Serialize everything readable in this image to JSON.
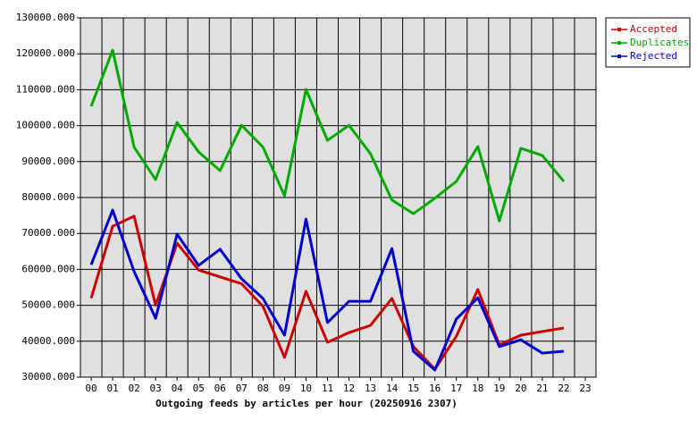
{
  "chart_data": {
    "type": "line",
    "xlabel": "Outgoing feeds by articles per hour (20250916 2307)",
    "categories": [
      "00",
      "01",
      "02",
      "03",
      "04",
      "05",
      "06",
      "07",
      "08",
      "09",
      "10",
      "11",
      "12",
      "13",
      "14",
      "15",
      "16",
      "17",
      "18",
      "19",
      "20",
      "21",
      "22",
      "23"
    ],
    "series": [
      {
        "name": "Accepted",
        "color": "#cc0000",
        "values": [
          52000,
          72000,
          74800,
          50000,
          67300,
          59800,
          57900,
          56000,
          49700,
          35500,
          53900,
          39700,
          42400,
          44400,
          51900,
          38500,
          32200,
          41400,
          54400,
          39000,
          41700,
          42700,
          43700,
          null
        ]
      },
      {
        "name": "Duplicates",
        "color": "#00aa00",
        "values": [
          105400,
          121000,
          94000,
          85000,
          100900,
          92700,
          87500,
          100100,
          94000,
          80500,
          110100,
          95900,
          100100,
          92200,
          79300,
          75500,
          79800,
          84500,
          94200,
          73500,
          93700,
          91700,
          84500,
          null
        ]
      },
      {
        "name": "Rejected",
        "color": "#0000cc",
        "values": [
          61300,
          76500,
          59400,
          46400,
          69800,
          61100,
          65600,
          57400,
          51900,
          41700,
          74000,
          45200,
          51100,
          51100,
          65800,
          37200,
          32000,
          46200,
          52100,
          38500,
          40400,
          36700,
          37200,
          null
        ]
      }
    ],
    "ylim": [
      30000,
      130000
    ],
    "yticks": [
      {
        "value": 30000,
        "label": "30000.000"
      },
      {
        "value": 40000,
        "label": "40000.000"
      },
      {
        "value": 50000,
        "label": "50000.000"
      },
      {
        "value": 60000,
        "label": "60000.000"
      },
      {
        "value": 70000,
        "label": "70000.000"
      },
      {
        "value": 80000,
        "label": "80000.000"
      },
      {
        "value": 90000,
        "label": "90000.000"
      },
      {
        "value": 100000,
        "label": "100000.000"
      },
      {
        "value": 110000,
        "label": "110000.000"
      },
      {
        "value": 120000,
        "label": "120000.000"
      },
      {
        "value": 130000,
        "label": "130000.000"
      }
    ],
    "grid": true,
    "legend": "top-right"
  }
}
